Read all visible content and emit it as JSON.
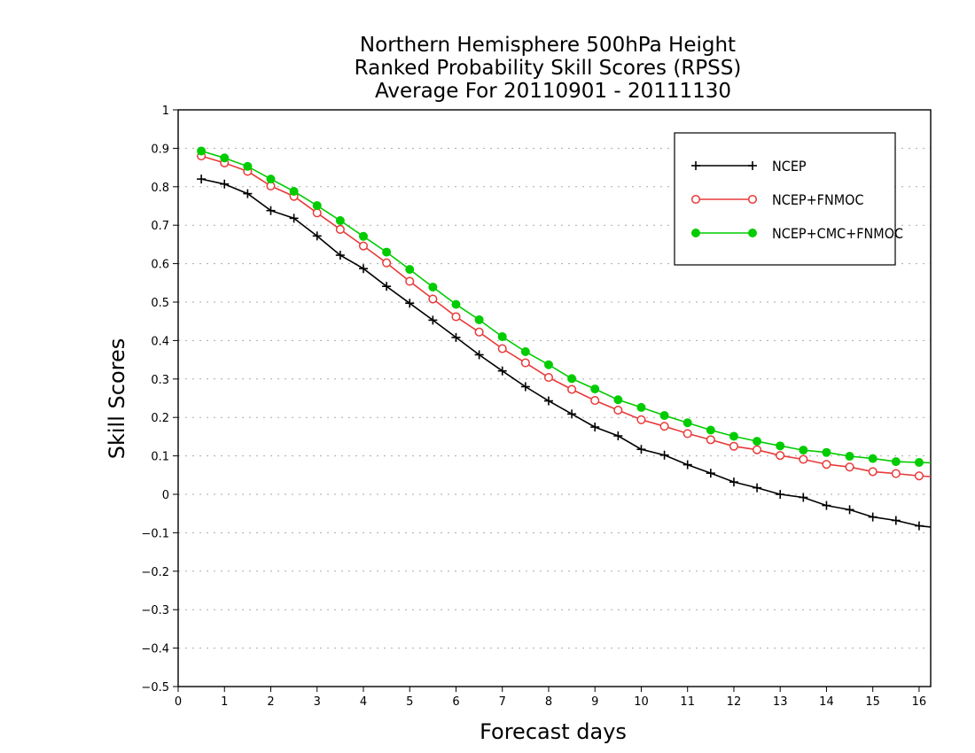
{
  "chart_data": {
    "type": "line",
    "title": [
      "Northern Hemisphere 500hPa Height",
      "Ranked Probability Skill Scores (RPSS)",
      "Average For 20110901 - 20111130"
    ],
    "xlabel": "Forecast days",
    "ylabel": "Skill Scores",
    "xlim": [
      0,
      16.25
    ],
    "ylim": [
      -0.5,
      1
    ],
    "x_ticks": [
      "0",
      "1",
      "2",
      "3",
      "4",
      "5",
      "6",
      "7",
      "8",
      "9",
      "10",
      "11",
      "12",
      "13",
      "14",
      "15",
      "16"
    ],
    "y_ticks": [
      "1",
      "0.9",
      "0.8",
      "0.7",
      "0.6",
      "0.5",
      "0.4",
      "0.3",
      "0.2",
      "0.1",
      "0",
      "−0.1",
      "−0.2",
      "−0.3",
      "−0.4",
      "−0.5"
    ],
    "grid": true,
    "legend_position": "top-right",
    "x": [
      0.5,
      1,
      1.5,
      2,
      2.5,
      3,
      3.5,
      4,
      4.5,
      5,
      5.5,
      6,
      6.5,
      7,
      7.5,
      8,
      8.5,
      9,
      9.5,
      10,
      10.5,
      11,
      11.5,
      12,
      12.5,
      13,
      13.5,
      14,
      14.5,
      15,
      15.5,
      16,
      16.25
    ],
    "series": [
      {
        "name": "NCEP",
        "color": "#000000",
        "marker": "plus",
        "values": [
          0.82,
          0.807,
          0.782,
          0.738,
          0.718,
          0.672,
          0.622,
          0.587,
          0.541,
          0.497,
          0.453,
          0.408,
          0.363,
          0.321,
          0.28,
          0.243,
          0.209,
          0.175,
          0.152,
          0.117,
          0.102,
          0.077,
          0.055,
          0.032,
          0.017,
          0.0,
          -0.008,
          -0.029,
          -0.04,
          -0.059,
          -0.068,
          -0.082,
          -0.085
        ]
      },
      {
        "name": "NCEP+FNMOC",
        "color": "#e83a3a",
        "marker": "open-circle",
        "values": [
          0.88,
          0.862,
          0.84,
          0.802,
          0.775,
          0.732,
          0.689,
          0.646,
          0.602,
          0.554,
          0.508,
          0.462,
          0.422,
          0.379,
          0.342,
          0.304,
          0.273,
          0.244,
          0.219,
          0.194,
          0.177,
          0.158,
          0.142,
          0.125,
          0.116,
          0.101,
          0.091,
          0.078,
          0.071,
          0.059,
          0.054,
          0.048,
          0.046
        ]
      },
      {
        "name": "NCEP+CMC+FNMOC",
        "color": "#00cc00",
        "marker": "filled-circle",
        "values": [
          0.893,
          0.875,
          0.853,
          0.82,
          0.788,
          0.751,
          0.712,
          0.671,
          0.63,
          0.585,
          0.539,
          0.494,
          0.454,
          0.41,
          0.371,
          0.337,
          0.301,
          0.274,
          0.246,
          0.226,
          0.205,
          0.186,
          0.167,
          0.151,
          0.138,
          0.126,
          0.115,
          0.109,
          0.099,
          0.093,
          0.085,
          0.083,
          0.082
        ]
      }
    ]
  }
}
